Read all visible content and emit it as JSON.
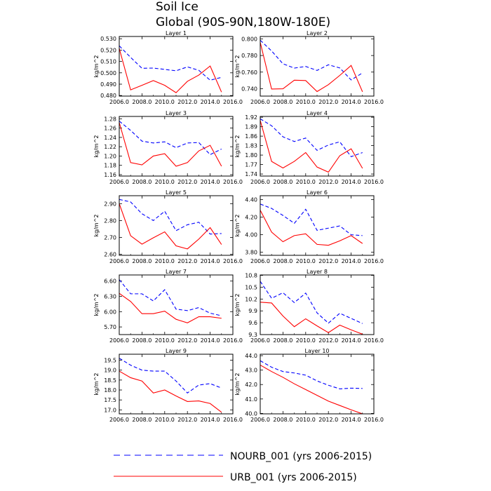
{
  "title": "Soil Ice",
  "subtitle": "Global (90S-90N,180W-180E)",
  "colors": {
    "NOURB_001": "#0000ff",
    "URB_001": "#ff0000"
  },
  "legend": [
    {
      "key": "NOURB_001",
      "label": "NOURB_001 (yrs 2006-2015)",
      "style": "dashed"
    },
    {
      "key": "URB_001",
      "label": "URB_001 (yrs 2006-2015)",
      "style": "solid"
    }
  ],
  "chart_data": [
    {
      "type": "line",
      "title": "Layer 1",
      "ylabel": "kg/m^2",
      "x": [
        2006,
        2007,
        2008,
        2009,
        2010,
        2011,
        2012,
        2013,
        2014,
        2015
      ],
      "xlim": [
        2006,
        2016
      ],
      "xticks": [
        "2006.0",
        "2008.0",
        "2010.0",
        "2012.0",
        "2014.0",
        "2016.0"
      ],
      "ylim": [
        0.4795,
        0.532
      ],
      "yticks": [
        "0.480",
        "0.490",
        "0.500",
        "0.510",
        "0.520",
        "0.530"
      ],
      "series": [
        {
          "name": "NOURB_001",
          "values": [
            0.5238,
            0.5136,
            0.504,
            0.5042,
            0.503,
            0.5018,
            0.5052,
            0.5022,
            0.4935,
            0.496
          ]
        },
        {
          "name": "URB_001",
          "values": [
            0.5215,
            0.485,
            0.489,
            0.4932,
            0.489,
            0.4825,
            0.4925,
            0.498,
            0.506,
            0.483
          ]
        }
      ]
    },
    {
      "type": "line",
      "title": "Layer 2",
      "ylabel": "kg/m^2",
      "x": [
        2006,
        2007,
        2008,
        2009,
        2010,
        2011,
        2012,
        2013,
        2014,
        2015
      ],
      "xlim": [
        2006,
        2016
      ],
      "xticks": [
        "2006.0",
        "2008.0",
        "2010.0",
        "2012.0",
        "2014.0",
        "2016.0"
      ],
      "ylim": [
        0.731,
        0.803
      ],
      "yticks": [
        "0.740",
        "0.760",
        "0.780",
        "0.800"
      ],
      "series": [
        {
          "name": "NOURB_001",
          "values": [
            0.7985,
            0.7855,
            0.77,
            0.7648,
            0.7668,
            0.762,
            0.7688,
            0.765,
            0.7505,
            0.759
          ]
        },
        {
          "name": "URB_001",
          "values": [
            0.796,
            0.7395,
            0.7398,
            0.7502,
            0.7498,
            0.7365,
            0.7448,
            0.756,
            0.768,
            0.7362
          ]
        }
      ]
    },
    {
      "type": "line",
      "title": "Layer 3",
      "ylabel": "kg/m^2",
      "x": [
        2006,
        2007,
        2008,
        2009,
        2010,
        2011,
        2012,
        2013,
        2014,
        2015
      ],
      "xlim": [
        2006,
        2016
      ],
      "xticks": [
        "2006.0",
        "2008.0",
        "2010.0",
        "2012.0",
        "2014.0",
        "2016.0"
      ],
      "ylim": [
        1.157,
        1.285
      ],
      "yticks": [
        "1.16",
        "1.18",
        "1.20",
        "1.22",
        "1.24",
        "1.26",
        "1.28"
      ],
      "series": [
        {
          "name": "NOURB_001",
          "values": [
            1.275,
            1.255,
            1.232,
            1.228,
            1.2305,
            1.218,
            1.228,
            1.229,
            1.203,
            1.215
          ]
        },
        {
          "name": "URB_001",
          "values": [
            1.272,
            1.186,
            1.181,
            1.2,
            1.205,
            1.178,
            1.186,
            1.211,
            1.223,
            1.178
          ]
        }
      ]
    },
    {
      "type": "line",
      "title": "Layer 4",
      "ylabel": "kg/m^2",
      "x": [
        2006,
        2007,
        2008,
        2009,
        2010,
        2011,
        2012,
        2013,
        2014,
        2015
      ],
      "xlim": [
        2006,
        2016
      ],
      "xticks": [
        "2006.0",
        "2008.0",
        "2010.0",
        "2012.0",
        "2014.0",
        "2016.0"
      ],
      "ylim": [
        1.7335,
        1.9225
      ],
      "yticks": [
        "1.74",
        "1.77",
        "1.80",
        "1.83",
        "1.86",
        "1.89",
        "1.92"
      ],
      "series": [
        {
          "name": "NOURB_001",
          "values": [
            1.915,
            1.893,
            1.858,
            1.843,
            1.854,
            1.815,
            1.832,
            1.842,
            1.795,
            1.808
          ]
        },
        {
          "name": "URB_001",
          "values": [
            1.91,
            1.78,
            1.759,
            1.78,
            1.808,
            1.762,
            1.746,
            1.798,
            1.82,
            1.758
          ]
        }
      ]
    },
    {
      "type": "line",
      "title": "Layer 5",
      "ylabel": "kg/m^2",
      "x": [
        2006,
        2007,
        2008,
        2009,
        2010,
        2011,
        2012,
        2013,
        2014,
        2015
      ],
      "xlim": [
        2006,
        2016
      ],
      "xticks": [
        "2006.0",
        "2008.0",
        "2010.0",
        "2012.0",
        "2014.0",
        "2016.0"
      ],
      "ylim": [
        2.594,
        2.947
      ],
      "yticks": [
        "2.60",
        "2.70",
        "2.80",
        "2.90"
      ],
      "series": [
        {
          "name": "NOURB_001",
          "values": [
            2.925,
            2.91,
            2.84,
            2.8,
            2.855,
            2.74,
            2.775,
            2.79,
            2.72,
            2.723
          ]
        },
        {
          "name": "URB_001",
          "values": [
            2.9,
            2.71,
            2.66,
            2.698,
            2.733,
            2.65,
            2.632,
            2.69,
            2.758,
            2.658
          ]
        }
      ]
    },
    {
      "type": "line",
      "title": "Layer 6",
      "ylabel": "kg/m^2",
      "x": [
        2006,
        2007,
        2008,
        2009,
        2010,
        2011,
        2012,
        2013,
        2014,
        2015
      ],
      "xlim": [
        2006,
        2016
      ],
      "xticks": [
        "2006.0",
        "2008.0",
        "2010.0",
        "2012.0",
        "2014.0",
        "2016.0"
      ],
      "ylim": [
        3.765,
        4.445
      ],
      "yticks": [
        "3.80",
        "4.00",
        "4.20",
        "4.40"
      ],
      "series": [
        {
          "name": "NOURB_001",
          "values": [
            4.35,
            4.3,
            4.22,
            4.13,
            4.29,
            4.05,
            4.075,
            4.1,
            4.0,
            3.99
          ]
        },
        {
          "name": "URB_001",
          "values": [
            4.28,
            4.03,
            3.92,
            3.99,
            4.01,
            3.89,
            3.88,
            3.93,
            3.99,
            3.9
          ]
        }
      ]
    },
    {
      "type": "line",
      "title": "Layer 7",
      "ylabel": "kg/m^2",
      "x": [
        2006,
        2007,
        2008,
        2009,
        2010,
        2011,
        2012,
        2013,
        2014,
        2015
      ],
      "xlim": [
        2006,
        2016
      ],
      "xticks": [
        "2006.0",
        "2008.0",
        "2010.0",
        "2012.0",
        "2014.0",
        "2016.0"
      ],
      "ylim": [
        5.55,
        6.72
      ],
      "yticks": [
        "5.70",
        "6.00",
        "6.30",
        "6.60"
      ],
      "series": [
        {
          "name": "NOURB_001",
          "values": [
            6.63,
            6.35,
            6.35,
            6.21,
            6.43,
            6.05,
            6.02,
            6.08,
            5.97,
            5.92
          ]
        },
        {
          "name": "URB_001",
          "values": [
            6.36,
            6.2,
            5.96,
            5.96,
            6.01,
            5.85,
            5.78,
            5.9,
            5.9,
            5.87
          ]
        }
      ]
    },
    {
      "type": "line",
      "title": "Layer 8",
      "ylabel": "kg/m^2",
      "x": [
        2006,
        2007,
        2008,
        2009,
        2010,
        2011,
        2012,
        2013,
        2014,
        2015
      ],
      "xlim": [
        2006,
        2016
      ],
      "xticks": [
        "2006.0",
        "2008.0",
        "2010.0",
        "2012.0",
        "2014.0",
        "2016.0"
      ],
      "ylim": [
        9.3,
        10.81
      ],
      "yticks": [
        "9.3",
        "9.6",
        "9.9",
        "10.2",
        "10.5",
        "10.8"
      ],
      "series": [
        {
          "name": "NOURB_001",
          "values": [
            10.65,
            10.22,
            10.36,
            10.11,
            10.35,
            9.85,
            9.59,
            9.84,
            9.71,
            9.58
          ]
        },
        {
          "name": "URB_001",
          "values": [
            10.12,
            10.1,
            9.77,
            9.5,
            9.7,
            9.52,
            9.35,
            9.54,
            9.42,
            9.31
          ]
        }
      ]
    },
    {
      "type": "line",
      "title": "Layer 9",
      "ylabel": "kg/m^2",
      "x": [
        2006,
        2007,
        2008,
        2009,
        2010,
        2011,
        2012,
        2013,
        2014,
        2015
      ],
      "xlim": [
        2006,
        2016
      ],
      "xticks": [
        "2006.0",
        "2008.0",
        "2010.0",
        "2012.0",
        "2014.0",
        "2016.0"
      ],
      "ylim": [
        16.8,
        19.8
      ],
      "yticks": [
        "17.0",
        "17.5",
        "18.0",
        "18.5",
        "19.0",
        "19.5"
      ],
      "series": [
        {
          "name": "NOURB_001",
          "values": [
            19.6,
            19.25,
            19.0,
            18.95,
            18.95,
            18.45,
            17.85,
            18.25,
            18.32,
            18.1
          ]
        },
        {
          "name": "URB_001",
          "values": [
            18.95,
            18.62,
            18.45,
            17.85,
            18.0,
            17.7,
            17.42,
            17.45,
            17.32,
            16.88
          ]
        }
      ]
    },
    {
      "type": "line",
      "title": "Layer 10",
      "ylabel": "kg/m^2",
      "x": [
        2006,
        2007,
        2008,
        2009,
        2010,
        2011,
        2012,
        2013,
        2014,
        2015
      ],
      "xlim": [
        2006,
        2016
      ],
      "xticks": [
        "2006.0",
        "2008.0",
        "2010.0",
        "2012.0",
        "2014.0",
        "2016.0"
      ],
      "ylim": [
        39.97,
        44.1
      ],
      "yticks": [
        "40.0",
        "41.0",
        "42.0",
        "43.0",
        "44.0"
      ],
      "series": [
        {
          "name": "NOURB_001",
          "values": [
            43.65,
            43.2,
            42.9,
            42.8,
            42.65,
            42.25,
            41.95,
            41.7,
            41.75,
            41.73
          ]
        },
        {
          "name": "URB_001",
          "values": [
            43.35,
            42.9,
            42.5,
            42.05,
            41.65,
            41.25,
            40.85,
            40.55,
            40.25,
            39.97
          ]
        }
      ]
    }
  ]
}
